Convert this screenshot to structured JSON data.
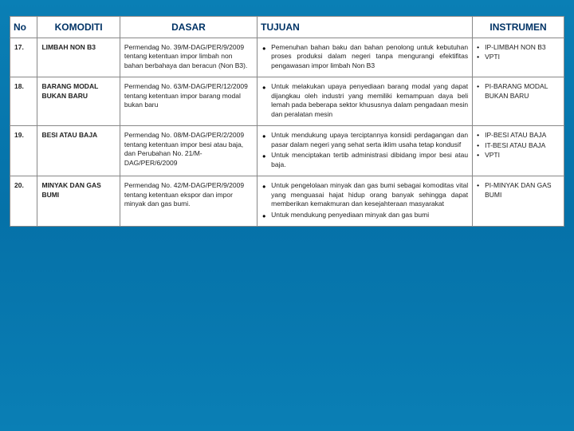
{
  "headers": {
    "no": "No",
    "komoditi": "KOMODITI",
    "dasar": "DASAR",
    "tujuan": "TUJUAN",
    "instrumen": "INSTRUMEN"
  },
  "rows": [
    {
      "no": "17.",
      "komoditi": "LIMBAH NON B3",
      "dasar": "Permendag No. 39/M-DAG/PER/9/2009 tentang ketentuan impor limbah non bahan berbahaya dan beracun (Non B3).",
      "tujuan": [
        "Pemenuhan bahan baku dan bahan penolong untuk kebutuhan proses produksi dalam negeri tanpa mengurangi efektifitas pengawasan impor limbah Non B3"
      ],
      "instrumen": [
        "IP-LIMBAH NON B3",
        "VPTI"
      ]
    },
    {
      "no": "18.",
      "komoditi": "BARANG MODAL BUKAN BARU",
      "dasar": "Permendag No. 63/M-DAG/PER/12/2009 tentang ketentuan impor barang modal bukan baru",
      "tujuan": [
        "Untuk melakukan upaya penyediaan barang modal yang dapat dijangkau oleh industri yang memiliki kemampuan daya beli lemah pada beberapa sektor khususnya dalam pengadaan mesin dan peralatan mesin"
      ],
      "instrumen": [
        "PI-BARANG MODAL BUKAN BARU"
      ]
    },
    {
      "no": "19.",
      "komoditi": "BESI ATAU BAJA",
      "dasar": "Permendag No. 08/M-DAG/PER/2/2009 tentang ketentuan impor besi atau baja, dan Perubahan No. 21/M-DAG/PER/6/2009",
      "tujuan": [
        "Untuk mendukung upaya terciptannya konsidi perdagangan dan pasar dalam negeri yang sehat serta iklim usaha tetap kondusif",
        "Untuk menciptakan tertib administrasi dibidang impor besi atau baja."
      ],
      "instrumen": [
        "IP-BESI ATAU BAJA",
        "IT-BESI ATAU BAJA",
        "VPTI"
      ]
    },
    {
      "no": "20.",
      "komoditi": "MINYAK DAN GAS BUMI",
      "dasar": "Permendag No. 42/M-DAG/PER/9/2009 tentang ketentuan ekspor dan impor minyak dan gas bumi.",
      "tujuan": [
        "Untuk pengelolaan minyak dan gas bumi sebagai komoditas vital yang menguasai hajat hidup orang banyak sehingga dapat memberikan kemakmuran dan kesejahteraan masyarakat",
        "Untuk mendukung penyediaan minyak dan gas bumi"
      ],
      "instrumen": [
        "PI-MINYAK DAN GAS BUMI"
      ]
    }
  ]
}
